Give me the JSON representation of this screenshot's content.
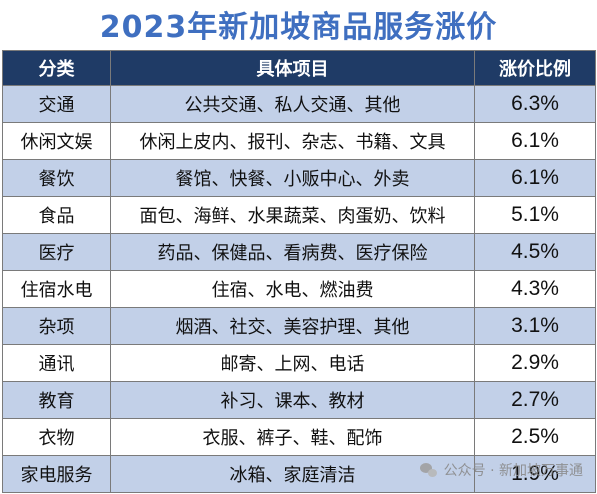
{
  "title": "2023年新加坡商品服务涨价",
  "headers": [
    "分类",
    "具体项目",
    "涨价比例"
  ],
  "rows": [
    {
      "category": "交通",
      "items": "公共交通、私人交通、其他",
      "pct": "6.3%"
    },
    {
      "category": "休闲文娱",
      "items": "休闲上皮内、报刊、杂志、书籍、文具",
      "pct": "6.1%"
    },
    {
      "category": "餐饮",
      "items": "餐馆、快餐、小贩中心、外卖",
      "pct": "6.1%"
    },
    {
      "category": "食品",
      "items": "面包、海鲜、水果蔬菜、肉蛋奶、饮料",
      "pct": "5.1%"
    },
    {
      "category": "医疗",
      "items": "药品、保健品、看病费、医疗保险",
      "pct": "4.5%"
    },
    {
      "category": "住宿水电",
      "items": "住宿、水电、燃油费",
      "pct": "4.3%"
    },
    {
      "category": "杂项",
      "items": "烟酒、社交、美容护理、其他",
      "pct": "3.1%"
    },
    {
      "category": "通讯",
      "items": "邮寄、上网、电话",
      "pct": "2.9%"
    },
    {
      "category": "教育",
      "items": "补习、课本、教材",
      "pct": "2.7%"
    },
    {
      "category": "衣物",
      "items": "衣服、裤子、鞋、配饰",
      "pct": "2.5%"
    },
    {
      "category": "家电服务",
      "items": "冰箱、家庭清洁",
      "pct": "1.9%"
    }
  ],
  "watermark": "公众号 · 新加坡万事通",
  "colors": {
    "title": "#3f6fc0",
    "header_bg": "#1f3b66",
    "alt_row": "#c2d0e8"
  }
}
